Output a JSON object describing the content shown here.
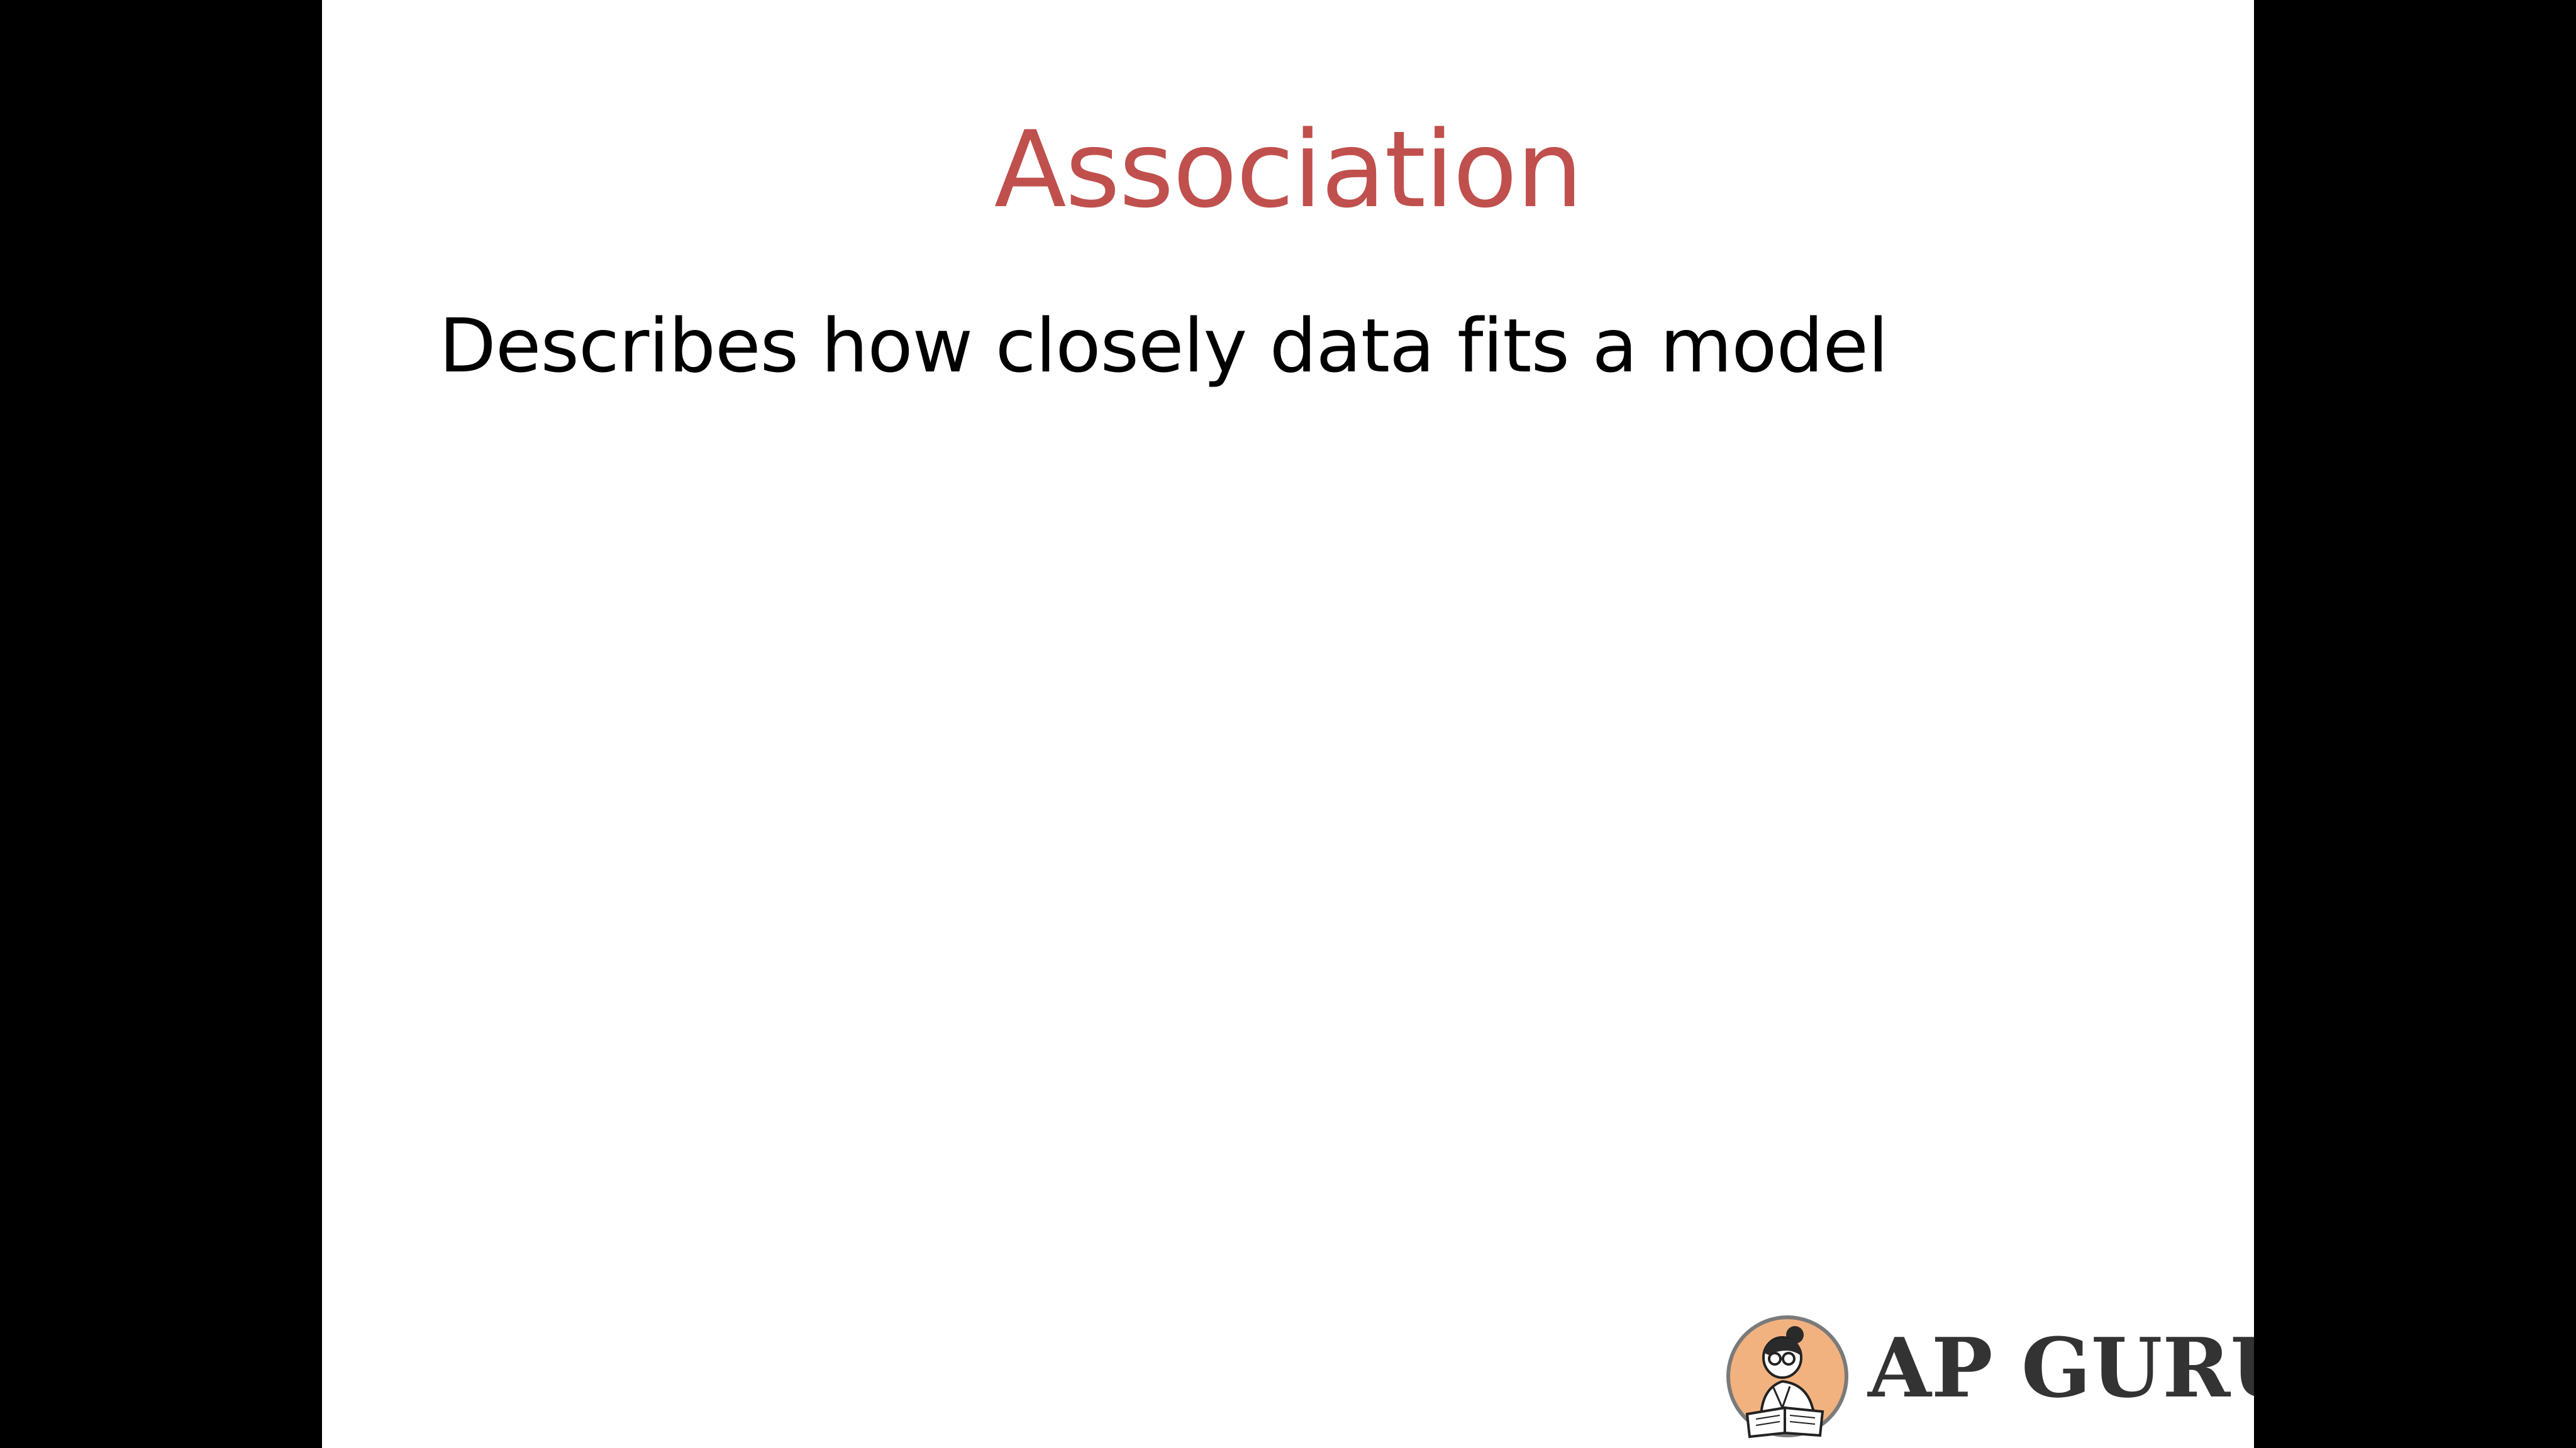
{
  "slide": {
    "title": "Association",
    "body_text": "Describes how closely data fits a model"
  },
  "logo": {
    "brand_text": "AP GURU",
    "icon": "reading-guru-icon"
  },
  "colors": {
    "background": "#000000",
    "slide_background": "#ffffff",
    "title": "#c0504d",
    "body_text": "#000000",
    "logo_text": "#333333",
    "logo_badge": "#f2b27f"
  }
}
